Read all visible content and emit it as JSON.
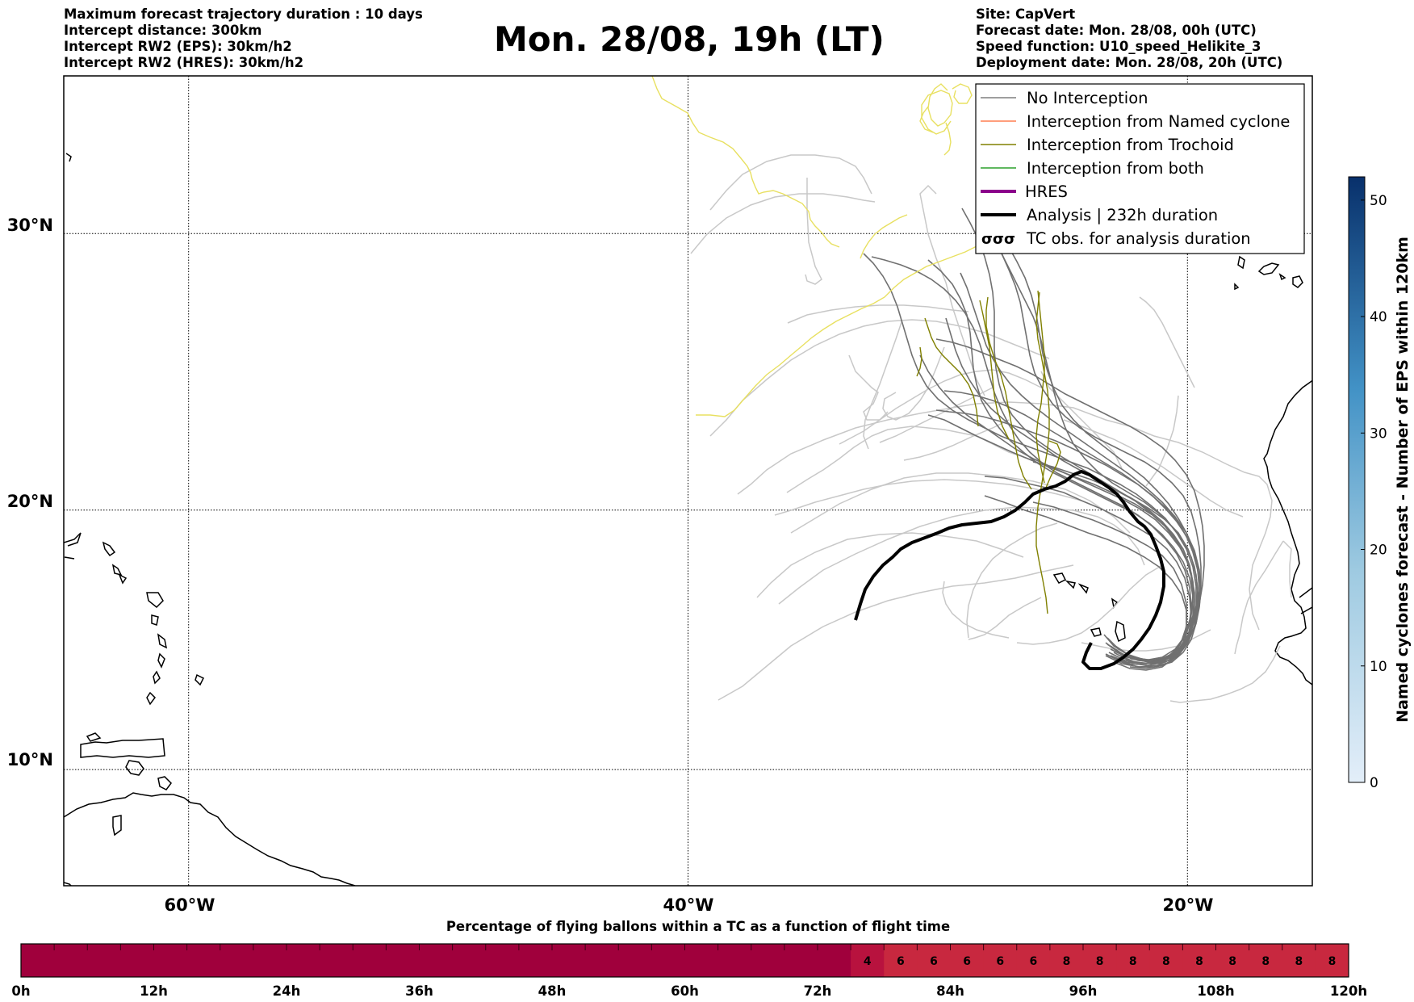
{
  "header": {
    "left": [
      "Maximum forecast trajectory duration : 10 days",
      "Intercept distance: 300km",
      "Intercept RW2 (EPS):  30km/h2",
      "Intercept RW2 (HRES): 30km/h2"
    ],
    "title": "Mon. 28/08, 19h (LT)",
    "right": [
      "Site: CapVert",
      "Forecast date: Mon. 28/08, 00h (UTC)",
      "Speed function: U10_speed_Helikite_3",
      "Deployment date: Mon. 28/08, 20h (UTC)"
    ]
  },
  "map": {
    "lat_labels": [
      "30°N",
      "20°N",
      "10°N"
    ],
    "lon_labels": [
      "60°W",
      "40°W",
      "20°W"
    ],
    "lat_values": [
      30,
      20,
      10
    ],
    "lon_values": [
      -60,
      -40,
      -20
    ],
    "extent": {
      "lon_min": -65,
      "lon_max": -15,
      "lat_min": 5.4,
      "lat_max": 35.3
    }
  },
  "legend": {
    "items": [
      {
        "label": "No Interception",
        "color": "#7f7f7f",
        "style": "thin"
      },
      {
        "label": "Interception from Named cyclone",
        "color": "#ff7f50",
        "style": "thin"
      },
      {
        "label": "Interception from Trochoid",
        "color": "#808000",
        "style": "thin"
      },
      {
        "label": "Interception from both",
        "color": "#2ca02c",
        "style": "thin"
      },
      {
        "label": "HRES",
        "color": "#8b008b",
        "style": "thick"
      },
      {
        "label": "Analysis | 232h duration",
        "color": "#000000",
        "style": "thick"
      },
      {
        "label": "TC obs. for analysis duration",
        "color": "#000000",
        "style": "tc-symbol"
      }
    ]
  },
  "colorbar": {
    "label": "Named cyclones forecast - Number of EPS within 120km",
    "ticks": [
      "0",
      "10",
      "20",
      "30",
      "40",
      "50"
    ],
    "tick_values": [
      0,
      10,
      20,
      30,
      40,
      50
    ],
    "max": 52,
    "color_min": "#e3eef9",
    "color_max": "#08306b"
  },
  "bottom_bar": {
    "title": "Percentage of flying ballons within a TC as a function of flight time",
    "time_labels": [
      "0h",
      "12h",
      "24h",
      "36h",
      "48h",
      "60h",
      "72h",
      "84h",
      "96h",
      "108h",
      "120h"
    ],
    "cells": [
      "",
      "",
      "",
      "",
      "",
      "",
      "",
      "",
      "",
      "",
      "",
      "",
      "",
      "",
      "",
      "",
      "",
      "",
      "",
      "",
      "",
      "",
      "",
      "",
      "",
      "4",
      "6",
      "6",
      "6",
      "6",
      "6",
      "8",
      "8",
      "8",
      "8",
      "8",
      "8",
      "8",
      "8",
      "8"
    ],
    "color_zero": "#a0003c",
    "color_low": "#b8123e",
    "color_high": "#c8283f"
  }
}
